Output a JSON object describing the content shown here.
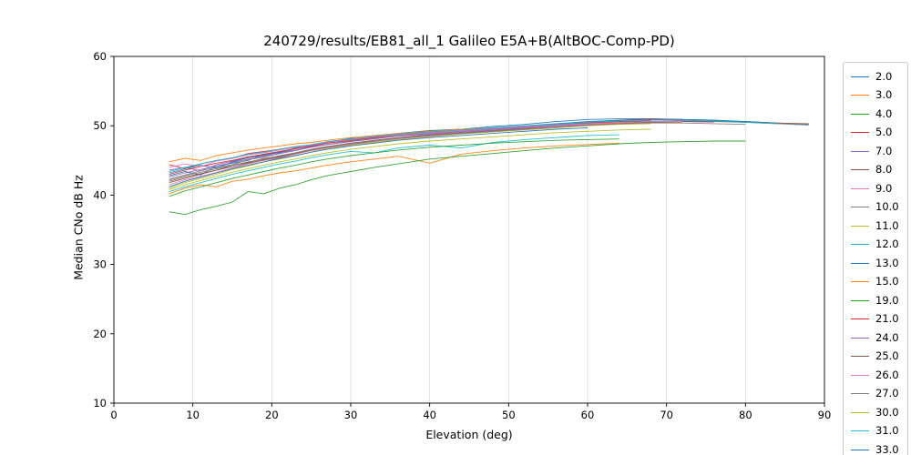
{
  "chart_data": {
    "type": "line",
    "title": "240729/results/EB81_all_1 Galileo E5A+B(AltBOC-Comp-PD)",
    "xlabel": "Elevation (deg)",
    "ylabel": "Median CNo dB Hz",
    "xlim": [
      0,
      90
    ],
    "ylim": [
      10,
      60
    ],
    "xticks": [
      0,
      10,
      20,
      30,
      40,
      50,
      60,
      70,
      80,
      90
    ],
    "yticks": [
      10,
      20,
      30,
      40,
      50,
      60
    ],
    "grid": "vertical",
    "legend_position": "right",
    "x": [
      7,
      9,
      11,
      13,
      15,
      17,
      19,
      21,
      23,
      25,
      27,
      30,
      33,
      36,
      40,
      44,
      48,
      52,
      56,
      60,
      64,
      68,
      72,
      76,
      80,
      84,
      88
    ],
    "series": [
      {
        "name": "2.0",
        "color": "#1f77b4",
        "y": [
          42.8,
          43.4,
          42.9,
          44.2,
          44.6,
          45.0,
          45.9,
          46.1,
          46.8,
          47.0,
          47.6,
          48.2,
          48.3,
          48.9,
          49.3,
          49.5,
          49.9,
          50.2,
          50.6,
          50.9,
          51.0,
          51.0,
          50.9,
          50.8,
          50.6,
          50.4,
          50.2
        ]
      },
      {
        "name": "3.0",
        "color": "#ff7f0e",
        "y": [
          40.2,
          41.0,
          41.5,
          41.2,
          42.0,
          42.3,
          42.8,
          43.2,
          43.5,
          43.9,
          44.3,
          44.8,
          45.2,
          45.6,
          44.6,
          45.9,
          46.4,
          46.8,
          47.1,
          47.3,
          47.5
        ]
      },
      {
        "name": "4.0",
        "color": "#2ca02c",
        "y": [
          37.6,
          37.2,
          37.9,
          38.4,
          39.0,
          40.5,
          40.2,
          41.0,
          41.5,
          42.2,
          42.8,
          43.4,
          44.0,
          44.5,
          45.2,
          45.6,
          46.0,
          46.4,
          46.8,
          47.1,
          47.4,
          47.6,
          47.7,
          47.8,
          47.8
        ]
      },
      {
        "name": "5.0",
        "color": "#d62728",
        "y": [
          44.4,
          43.8,
          44.5,
          45.0,
          45.3,
          46.0,
          46.3,
          46.6,
          47.0,
          47.2,
          47.7,
          48.1,
          48.5,
          48.8,
          49.2,
          49.4,
          49.6,
          49.9,
          50.2,
          50.5,
          50.8,
          51.0,
          50.9
        ]
      },
      {
        "name": "7.0",
        "color": "#9467bd",
        "y": [
          43.6,
          44.0,
          43.5,
          44.4,
          44.9,
          45.5,
          45.7,
          46.2,
          46.5,
          47.0,
          47.3,
          47.8,
          48.2,
          48.6,
          48.9,
          49.2,
          49.5,
          49.8,
          50.1,
          50.4,
          50.6,
          50.7
        ]
      },
      {
        "name": "8.0",
        "color": "#8c564b",
        "y": [
          42.0,
          42.6,
          43.1,
          43.6,
          44.3,
          44.7,
          45.3,
          45.6,
          46.1,
          46.6,
          47.0,
          47.5,
          47.9,
          48.3,
          48.7,
          49.0,
          49.3,
          49.6,
          50.0,
          50.3,
          50.5,
          50.6,
          50.6
        ]
      },
      {
        "name": "9.0",
        "color": "#e377c2",
        "y": [
          41.5,
          42.2,
          42.7,
          43.3,
          43.9,
          44.5,
          45.0,
          45.4,
          45.9,
          46.4,
          46.8,
          47.3,
          47.7,
          48.1,
          48.5,
          48.9,
          49.2,
          49.5,
          49.9,
          50.2,
          50.4,
          50.6,
          50.6,
          50.5
        ]
      },
      {
        "name": "10.0",
        "color": "#7f7f7f",
        "y": [
          42.3,
          42.9,
          43.5,
          44.0,
          44.4,
          45.1,
          45.5,
          46.0,
          46.4,
          46.9,
          47.3,
          47.8,
          48.2,
          48.6,
          49.0,
          49.3,
          49.6,
          49.9,
          50.2,
          50.5,
          50.7,
          50.8,
          50.8,
          50.7,
          50.5,
          50.3,
          50.1
        ]
      },
      {
        "name": "11.0",
        "color": "#bcbd22",
        "y": [
          41.0,
          41.8,
          42.4,
          43.0,
          43.7,
          44.2,
          44.8,
          45.2,
          45.7,
          46.2,
          46.7,
          47.2,
          47.6,
          48.0,
          48.4,
          48.8,
          49.1,
          49.4,
          49.7,
          50.0,
          50.2,
          50.3
        ]
      },
      {
        "name": "12.0",
        "color": "#17becf",
        "y": [
          40.5,
          41.2,
          41.8,
          42.4,
          43.0,
          43.5,
          44.0,
          44.5,
          44.9,
          45.4,
          45.8,
          46.3,
          46.1,
          46.8,
          47.2,
          46.8,
          47.6,
          48.0,
          48.3,
          48.6,
          48.7
        ]
      },
      {
        "name": "13.0",
        "color": "#1f77b4",
        "y": [
          43.2,
          43.8,
          44.3,
          43.9,
          44.8,
          45.4,
          45.8,
          46.2,
          46.7,
          47.1,
          47.5,
          48.0,
          48.4,
          48.8,
          49.1,
          49.4,
          49.7,
          50.0,
          50.3,
          50.6,
          50.8,
          50.9,
          50.9,
          50.8,
          50.6,
          50.4
        ]
      },
      {
        "name": "15.0",
        "color": "#ff7f0e",
        "y": [
          44.8,
          45.3,
          45.0,
          45.7,
          46.1,
          46.5,
          46.8,
          47.1,
          47.4,
          47.6,
          47.9,
          48.3,
          48.6,
          48.9,
          49.2,
          49.5,
          49.7,
          49.9,
          50.1,
          50.3,
          50.4,
          50.5,
          50.5
        ]
      },
      {
        "name": "19.0",
        "color": "#2ca02c",
        "y": [
          39.8,
          40.6,
          41.2,
          41.8,
          42.4,
          42.9,
          43.4,
          43.9,
          44.3,
          44.8,
          45.2,
          45.7,
          46.1,
          46.5,
          46.9,
          47.2,
          47.5,
          47.7,
          47.9,
          48.0,
          48.1
        ]
      },
      {
        "name": "21.0",
        "color": "#d62728",
        "y": [
          43.0,
          43.6,
          44.1,
          44.6,
          45.0,
          45.5,
          45.9,
          46.3,
          46.7,
          47.1,
          47.5,
          47.9,
          48.3,
          48.7,
          49.0,
          49.3,
          49.6,
          49.9,
          50.2,
          50.4,
          50.6,
          50.7
        ]
      },
      {
        "name": "24.0",
        "color": "#9467bd",
        "y": [
          42.6,
          43.2,
          43.7,
          44.2,
          44.7,
          45.2,
          45.6,
          46.0,
          46.5,
          46.9,
          47.3,
          47.7,
          48.1,
          48.5,
          48.8,
          49.1,
          49.4,
          49.7,
          50.0,
          50.3,
          50.5,
          50.6,
          50.7,
          50.6
        ]
      },
      {
        "name": "25.0",
        "color": "#8c564b",
        "y": [
          41.8,
          42.4,
          43.0,
          43.6,
          44.1,
          44.6,
          45.1,
          45.5,
          46.0,
          46.5,
          46.9,
          47.4,
          47.8,
          48.2,
          48.6,
          48.9,
          49.2,
          49.5,
          49.8,
          50.1,
          50.3,
          50.5,
          50.6,
          50.6,
          50.5,
          50.4,
          50.3
        ]
      },
      {
        "name": "26.0",
        "color": "#e377c2",
        "y": [
          44.0,
          44.5,
          44.1,
          44.9,
          45.3,
          45.8,
          46.1,
          46.5,
          46.9,
          47.2,
          47.6,
          48.0,
          48.4,
          48.7,
          49.0,
          49.3,
          49.6,
          49.9,
          50.1,
          50.3,
          50.5,
          50.6,
          50.6
        ]
      },
      {
        "name": "27.0",
        "color": "#7f7f7f",
        "y": [
          42.2,
          42.8,
          43.3,
          43.8,
          44.3,
          44.8,
          45.2,
          45.7,
          46.1,
          46.6,
          47.0,
          47.4,
          47.8,
          48.2,
          48.6,
          48.9,
          49.2,
          49.5,
          49.8,
          50.1,
          50.3,
          50.4,
          50.4,
          50.3,
          50.2
        ]
      },
      {
        "name": "30.0",
        "color": "#bcbd22",
        "y": [
          40.8,
          41.5,
          42.1,
          42.7,
          43.3,
          43.8,
          44.3,
          44.8,
          45.2,
          45.7,
          46.1,
          46.6,
          47.0,
          47.4,
          47.8,
          48.1,
          48.4,
          48.7,
          49.0,
          49.2,
          49.4,
          49.5
        ]
      },
      {
        "name": "31.0",
        "color": "#17becf",
        "y": [
          43.4,
          44.0,
          44.5,
          45.0,
          45.4,
          45.9,
          46.2,
          46.6,
          47.0,
          47.3,
          47.7,
          48.1,
          48.5,
          48.8,
          49.1,
          49.4,
          49.7,
          50.0,
          50.2,
          50.5,
          50.7,
          50.8,
          50.8,
          50.7,
          50.5,
          50.3
        ]
      },
      {
        "name": "33.0",
        "color": "#1f77b4",
        "y": [
          41.2,
          42.0,
          42.6,
          43.2,
          43.8,
          44.3,
          44.8,
          45.3,
          45.7,
          46.2,
          46.6,
          47.1,
          47.5,
          47.9,
          48.3,
          48.6,
          48.9,
          49.2,
          49.5,
          49.7
        ]
      }
    ]
  }
}
